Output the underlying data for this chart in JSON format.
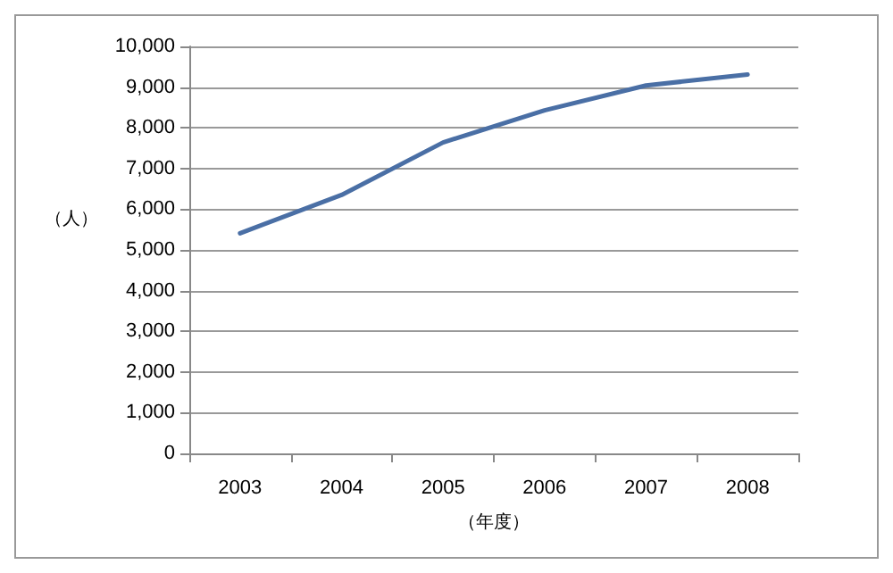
{
  "chart_data": {
    "type": "line",
    "xlabel": "（年度）",
    "ylabel": "（人）",
    "categories": [
      "2003",
      "2004",
      "2005",
      "2006",
      "2007",
      "2008"
    ],
    "series": [
      {
        "color": "#4a6fa5",
        "values": [
          5410,
          6350,
          7640,
          8430,
          9040,
          9310
        ]
      }
    ],
    "ylim": [
      0,
      10000
    ],
    "yticks": [
      0,
      {
        "value": 1000,
        "label": "1,000"
      },
      {
        "value": 2000,
        "label": "2,000"
      },
      {
        "value": 3000,
        "label": "3,000"
      },
      {
        "value": 4000,
        "label": "4,000"
      },
      {
        "value": 5000,
        "label": "5,000"
      },
      {
        "value": 6000,
        "label": "6,000"
      },
      {
        "value": 7000,
        "label": "7,000"
      },
      {
        "value": 8000,
        "label": "8,000"
      },
      {
        "value": 9000,
        "label": "9,000"
      },
      {
        "value": 10000,
        "label": "10,000"
      }
    ],
    "grid": "y",
    "marker": "none",
    "line_style": "solid"
  }
}
